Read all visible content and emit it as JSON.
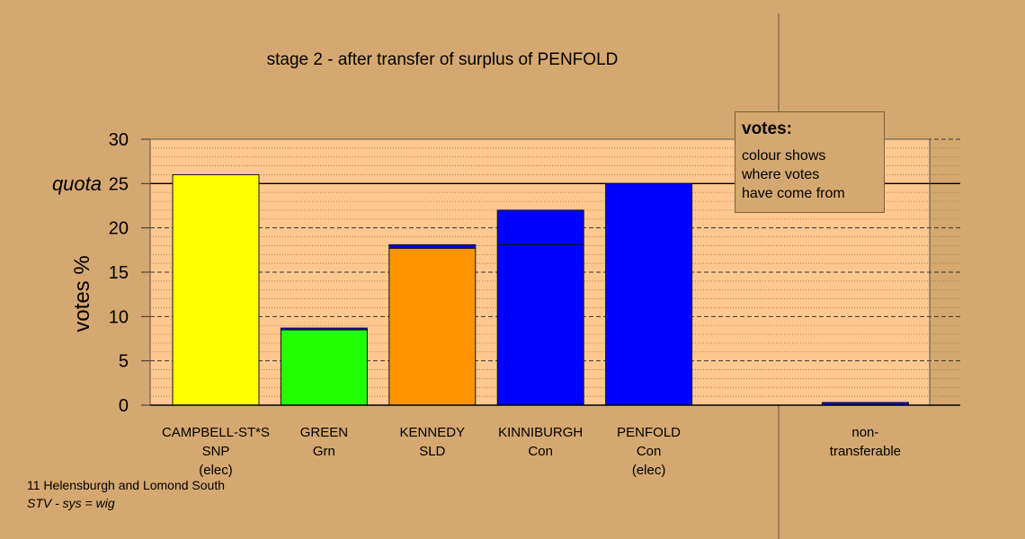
{
  "chart_data": {
    "type": "bar",
    "title": "stage 2 - after transfer of surplus of PENFOLD",
    "ylabel": "votes %",
    "ylim": [
      0,
      30
    ],
    "yticks": [
      0,
      5,
      10,
      15,
      20,
      25,
      30
    ],
    "quota": {
      "label": "quota",
      "value": 25
    },
    "grid": true,
    "stacked": true,
    "categories": [
      [
        "CAMPBELL-ST*S",
        "SNP",
        "(elec)"
      ],
      [
        "GREEN",
        "Grn"
      ],
      [
        "KENNEDY",
        "SLD"
      ],
      [
        "KINNIBURGH",
        "Con"
      ],
      [
        "PENFOLD",
        "Con",
        "(elec)"
      ],
      [],
      [
        "non-",
        "transferable"
      ]
    ],
    "bars": [
      {
        "segments": [
          {
            "value": 26.0,
            "color": "#ffff00"
          }
        ]
      },
      {
        "segments": [
          {
            "value": 8.5,
            "color": "#22ff00"
          },
          {
            "value": 0.2,
            "color": "#0000ff"
          }
        ]
      },
      {
        "segments": [
          {
            "value": 17.7,
            "color": "#ff9400"
          },
          {
            "value": 0.4,
            "color": "#0000ff"
          }
        ]
      },
      {
        "segments": [
          {
            "value": 18.1,
            "color": "#0000ff"
          },
          {
            "value": 3.9,
            "color": "#0000ff"
          }
        ]
      },
      {
        "segments": [
          {
            "value": 25.0,
            "color": "#0000ff"
          }
        ]
      },
      {
        "segments": []
      },
      {
        "segments": [
          {
            "value": 0.3,
            "color": "#0000ff"
          }
        ]
      }
    ]
  },
  "legend": {
    "title": "votes:",
    "lines": [
      "colour shows",
      "where votes",
      "have come from"
    ]
  },
  "footer": {
    "area": "11 Helensburgh and Lomond South",
    "system": "STV - sys = wig"
  },
  "colors": {
    "background": "#d4a870",
    "plot_area": "#ffc890"
  }
}
